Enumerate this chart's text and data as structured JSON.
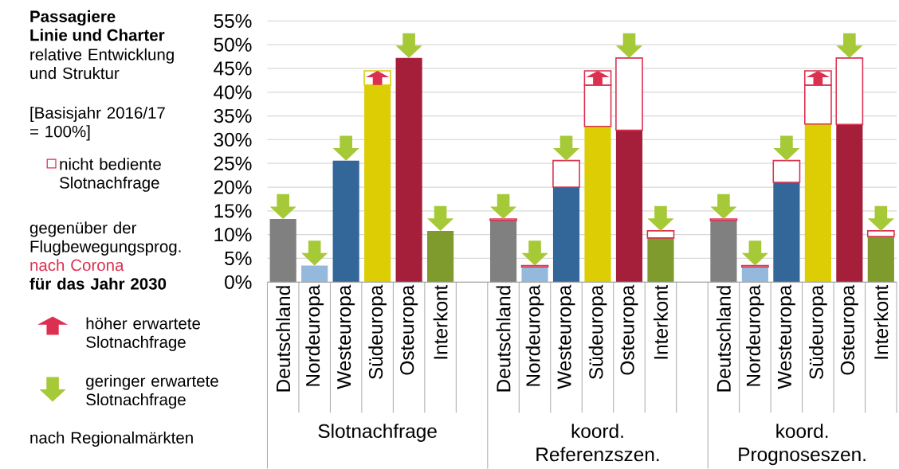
{
  "chart_data": {
    "type": "bar",
    "title": "Passagiere",
    "subtitle": "Linie und Charter",
    "categories": [
      "Deutschland",
      "Nordeuropa",
      "Westeuropa",
      "Südeuropa",
      "Osteuropa",
      "Interkont",
      null,
      "Deutschland",
      "Nordeuropa",
      "Westeuropa",
      "Südeuropa",
      "Osteuropa",
      "Interkont",
      null,
      "Deutschland",
      "Nordeuropa",
      "Westeuropa",
      "Südeuropa",
      "Osteuropa",
      "Interkont"
    ],
    "stacked": true,
    "grid": "y",
    "legend": "left",
    "ylim": [
      0,
      55
    ],
    "yticks": [
      {
        "value": 0,
        "label": "0%"
      },
      {
        "value": 5,
        "label": "5%"
      },
      {
        "value": 10,
        "label": "10%"
      },
      {
        "value": 15,
        "label": "15%"
      },
      {
        "value": 20,
        "label": "20%"
      },
      {
        "value": 25,
        "label": "25%"
      },
      {
        "value": 30,
        "label": "30%"
      },
      {
        "value": 35,
        "label": "35%"
      },
      {
        "value": 40,
        "label": "40%"
      },
      {
        "value": 45,
        "label": "45%"
      },
      {
        "value": 50,
        "label": "50%"
      },
      {
        "value": 55,
        "label": "55%"
      }
    ],
    "series": [
      {
        "colors": [
          "#808080",
          "#95b9dd",
          "#336699",
          "#dccd05",
          "#a51f3b",
          "#7f9a2d",
          null,
          "#808080",
          "#95b9dd",
          "#336699",
          "#dccd05",
          "#a51f3b",
          "#7f9a2d",
          null,
          "#808080",
          "#95b9dd",
          "#336699",
          "#dccd05",
          "#a51f3b",
          "#7f9a2d"
        ],
        "values": [
          13.3,
          3.5,
          25.6,
          41.5,
          47.2,
          10.8,
          null,
          13.0,
          3.2,
          20.0,
          32.8,
          32.0,
          9.3,
          null,
          13.0,
          3.2,
          21.0,
          33.3,
          33.2,
          9.6
        ]
      },
      {
        "name": "nicht bediente Slotnachfrage",
        "color": "#dc3050",
        "values": [
          null,
          null,
          null,
          null,
          null,
          null,
          null,
          0.3,
          0.3,
          5.6,
          8.7,
          15.2,
          1.5,
          null,
          0.3,
          0.3,
          4.6,
          8.2,
          14.0,
          1.2
        ]
      },
      {
        "colors": [
          null,
          null,
          null,
          "#dccd05",
          null,
          null,
          null,
          null,
          null,
          null,
          "#dc3050",
          null,
          null,
          null,
          null,
          null,
          null,
          "#dc3050",
          null,
          null
        ],
        "values": [
          null,
          null,
          null,
          3.0,
          null,
          null,
          null,
          null,
          null,
          null,
          3.0,
          null,
          null,
          null,
          null,
          null,
          null,
          3.0,
          null,
          null
        ]
      }
    ],
    "annotations": [
      "relative Entwicklung und Struktur",
      "[Basisjahr 2016/17 = 100%]",
      "gegenüber der Flugbewegungsprog.",
      "nach Corona",
      "für das Jahr 2030",
      "höher erwartete Slotnachfrage",
      "geringer erwartete Slotnachfrage",
      "nach Regionalmärkten",
      "Slotnachfrage",
      "koord. Referenzszen.",
      "koord. Prognoseszen."
    ]
  }
}
